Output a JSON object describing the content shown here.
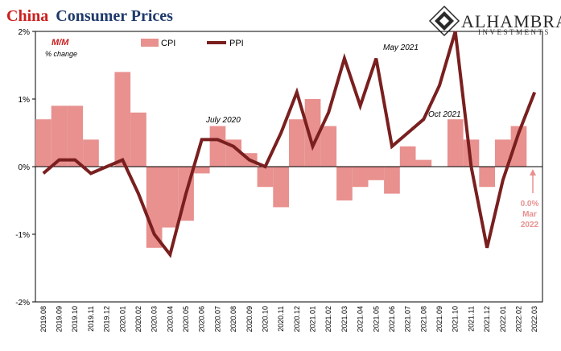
{
  "title": {
    "part1": "China",
    "part2": "Consumer Prices"
  },
  "logo": {
    "name": "ALHAMBRA",
    "sub": "INVESTMENTS"
  },
  "chart_data": {
    "type": "bar",
    "categories": [
      "2019.08",
      "2019.09",
      "2019.10",
      "2019.11",
      "2019.12",
      "2020.01",
      "2020.02",
      "2020.03",
      "2020.04",
      "2020.05",
      "2020.06",
      "2020.07",
      "2020.08",
      "2020.09",
      "2020.10",
      "2020.11",
      "2020.12",
      "2021.01",
      "2021.02",
      "2021.03",
      "2021.04",
      "2021.05",
      "2021.06",
      "2021.07",
      "2021.08",
      "2021.09",
      "2021.10",
      "2021.11",
      "2021.12",
      "2022.01",
      "2022.02",
      "2022.03"
    ],
    "series": [
      {
        "name": "CPI",
        "type": "bar",
        "color": "#e8918f",
        "values": [
          0.7,
          0.9,
          0.9,
          0.4,
          0.0,
          1.4,
          0.8,
          -1.2,
          -0.9,
          -0.8,
          -0.1,
          0.6,
          0.4,
          0.2,
          -0.3,
          -0.6,
          0.7,
          1.0,
          0.6,
          -0.5,
          -0.3,
          -0.2,
          -0.4,
          0.3,
          0.1,
          0.0,
          0.7,
          0.4,
          -0.3,
          0.4,
          0.6,
          0.0
        ]
      },
      {
        "name": "PPI",
        "type": "line",
        "color": "#7a1f1f",
        "values": [
          -0.1,
          0.1,
          0.1,
          -0.1,
          0.0,
          0.1,
          -0.4,
          -1.0,
          -1.3,
          -0.4,
          0.4,
          0.4,
          0.3,
          0.1,
          0.0,
          0.5,
          1.1,
          0.3,
          0.8,
          1.6,
          0.9,
          1.6,
          0.3,
          0.5,
          0.7,
          1.2,
          2.5,
          0.0,
          -1.2,
          -0.2,
          0.5,
          1.1
        ]
      }
    ],
    "ylim": [
      -2,
      2
    ],
    "yticks": [
      "2%",
      "1%",
      "0%",
      "-1%",
      "-2%"
    ],
    "units_label": "M/M",
    "units_sub": "% change",
    "annotations": {
      "jul2020": "July 2020",
      "may2021": "May 2021",
      "oct2021": "Oct 2021"
    },
    "note": {
      "line1": "0.0%",
      "line2": "Mar",
      "line3": "2022"
    },
    "grid": false,
    "legend_position": "top-left"
  }
}
